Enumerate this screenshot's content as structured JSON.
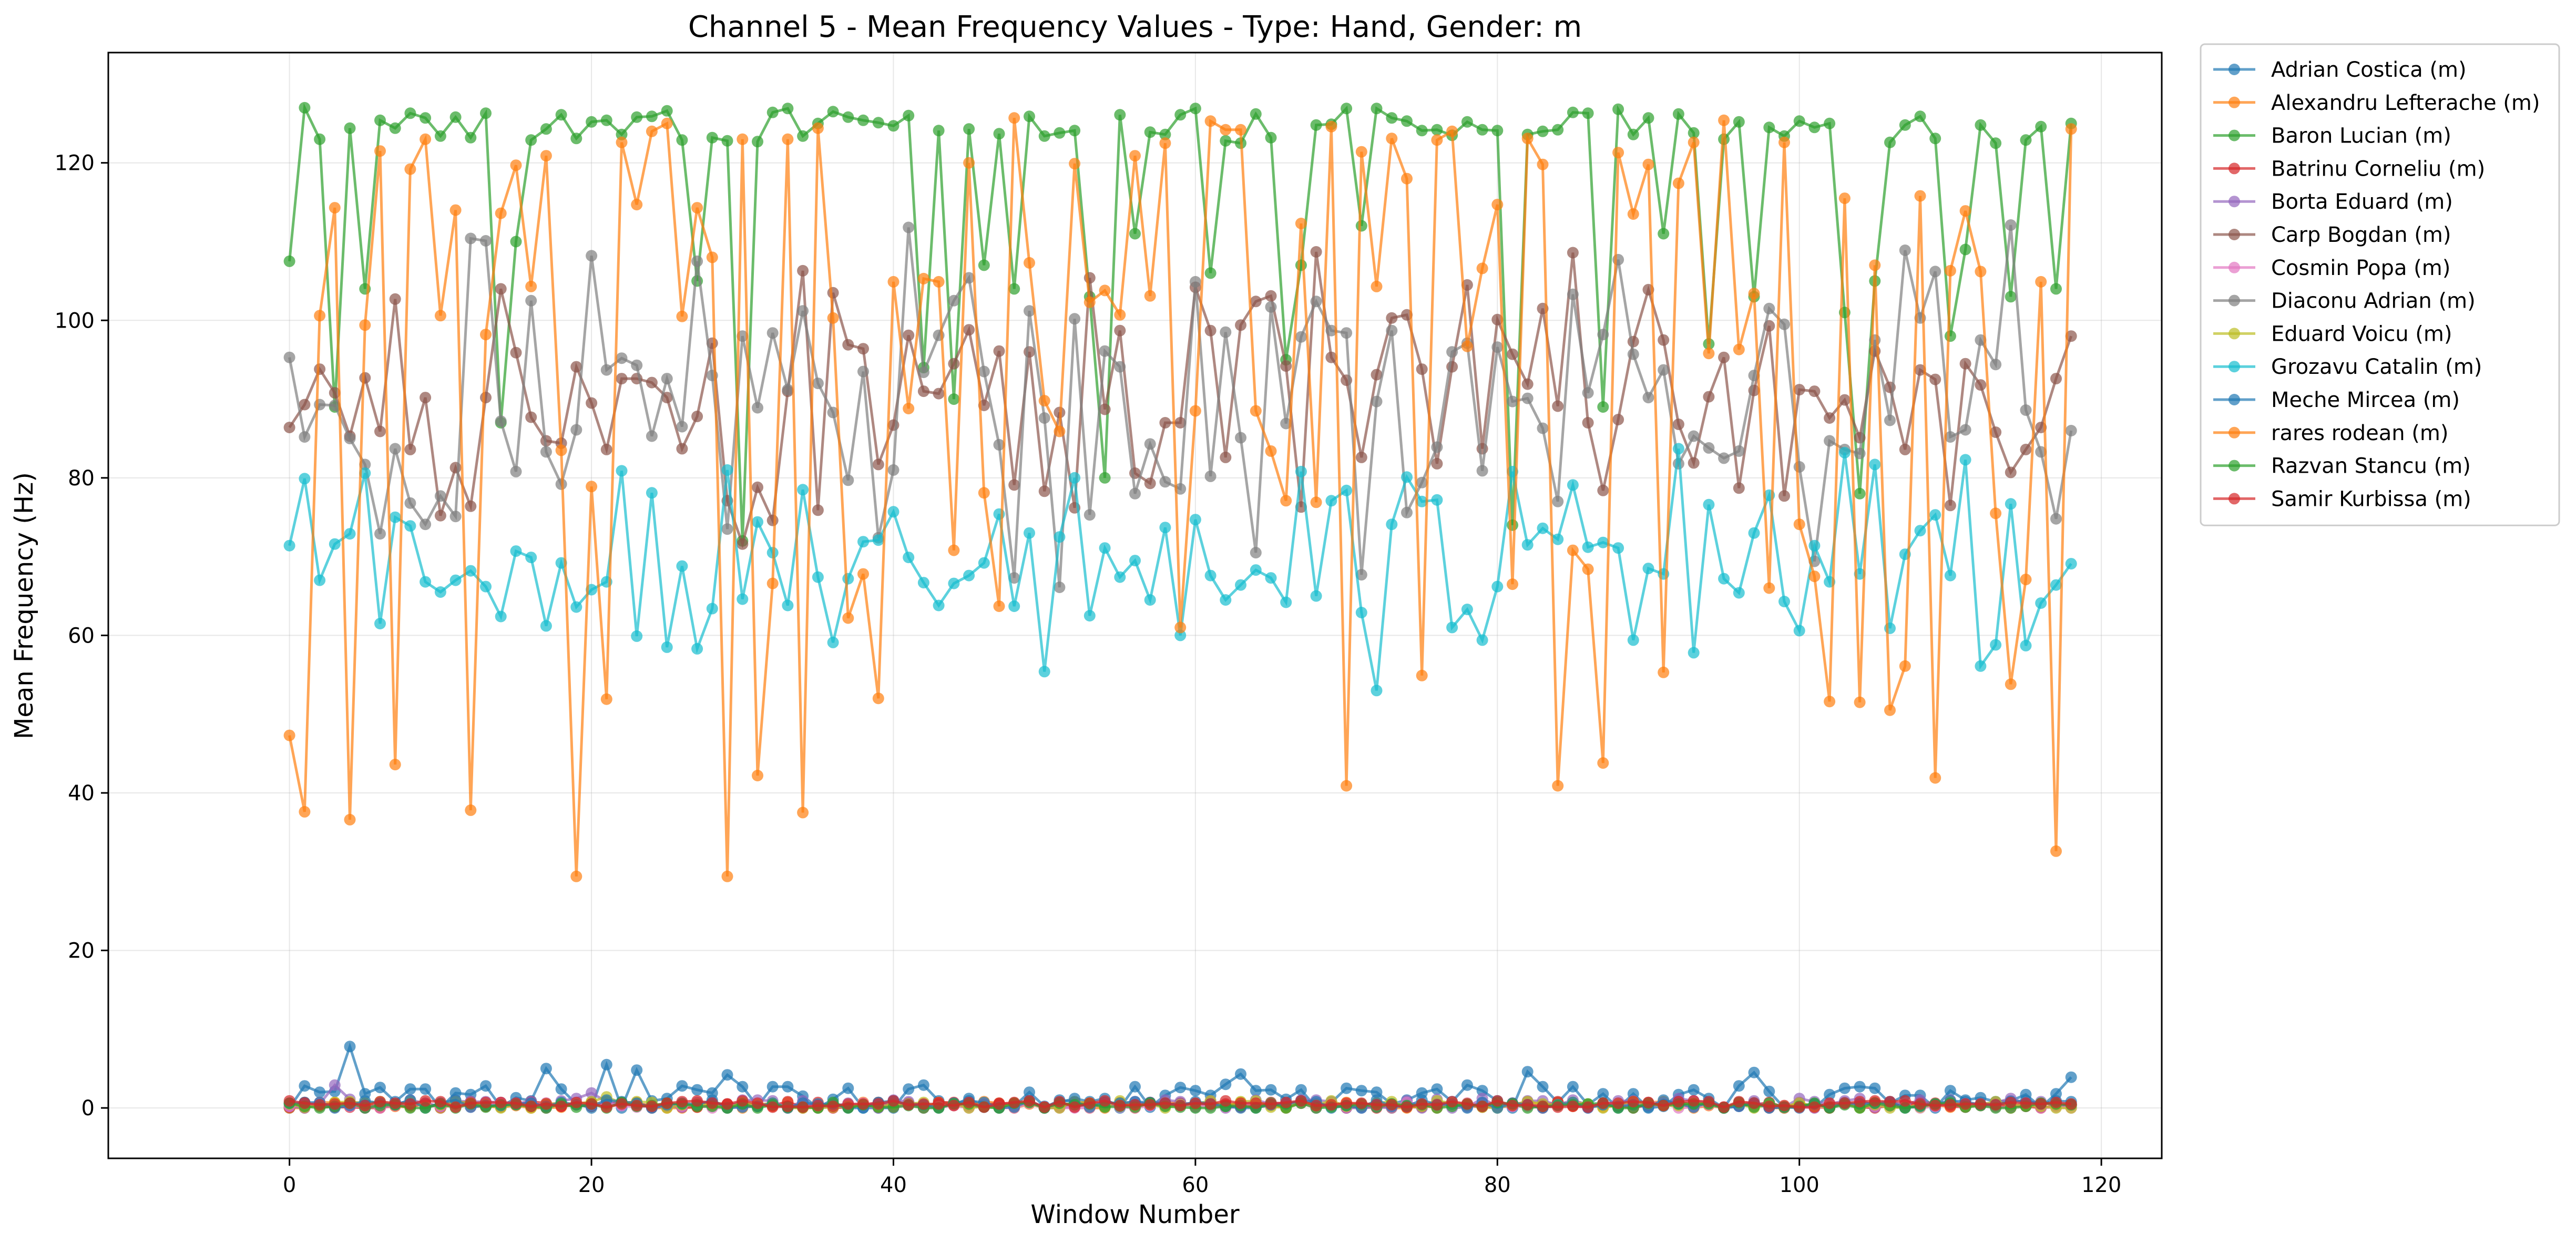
{
  "chart_data": {
    "type": "line",
    "title": "Channel 5 - Mean Frequency Values - Type: Hand, Gender: m",
    "xlabel": "Window Number",
    "ylabel": "Mean Frequency (Hz)",
    "xlim": [
      -12,
      124
    ],
    "ylim": [
      -6.4,
      134
    ],
    "xticks": [
      0,
      20,
      40,
      60,
      80,
      100,
      120
    ],
    "yticks": [
      0,
      20,
      40,
      60,
      80,
      100,
      120
    ],
    "grid": true,
    "legend_position": "outside-right-top",
    "series": [
      {
        "name": "Adrian Costica (m)",
        "color": "#1f77b4",
        "kind": "low",
        "base": 1.2,
        "amp": 3.6,
        "seed": 11,
        "peaks": [
          [
            4,
            7.8
          ],
          [
            17,
            5.0
          ],
          [
            21,
            5.5
          ],
          [
            23,
            4.8
          ],
          [
            29,
            4.2
          ],
          [
            63,
            4.3
          ],
          [
            82,
            4.6
          ],
          [
            97,
            4.5
          ],
          [
            118,
            3.9
          ]
        ]
      },
      {
        "name": "Alexandru Lefterache (m)",
        "color": "#ff7f0e",
        "kind": "low",
        "base": 0.3,
        "amp": 1.0,
        "seed": 12,
        "peaks": []
      },
      {
        "name": "Baron Lucian (m)",
        "color": "#2ca02c",
        "kind": "high",
        "base": 124,
        "amp": 6,
        "seed": 13,
        "dips": [
          [
            3,
            89
          ],
          [
            5,
            104
          ],
          [
            14,
            87
          ],
          [
            15,
            110
          ],
          [
            27,
            105
          ],
          [
            30,
            72
          ],
          [
            42,
            94
          ],
          [
            44,
            90
          ],
          [
            46,
            107
          ],
          [
            48,
            104
          ],
          [
            53,
            103
          ],
          [
            54,
            80
          ],
          [
            56,
            111
          ],
          [
            61,
            106
          ],
          [
            66,
            95
          ],
          [
            67,
            107
          ],
          [
            71,
            112
          ],
          [
            81,
            74
          ],
          [
            87,
            89
          ],
          [
            91,
            111
          ],
          [
            94,
            97
          ],
          [
            97,
            103
          ],
          [
            103,
            101
          ],
          [
            104,
            78
          ],
          [
            105,
            105
          ],
          [
            110,
            98
          ],
          [
            111,
            109
          ],
          [
            114,
            103
          ],
          [
            117,
            104
          ]
        ]
      },
      {
        "name": "Batrinu Corneliu (m)",
        "color": "#d62728",
        "kind": "low",
        "base": 0.4,
        "amp": 0.9,
        "seed": 14,
        "peaks": []
      },
      {
        "name": "Borta Eduard (m)",
        "color": "#9467bd",
        "kind": "low",
        "base": 0.5,
        "amp": 1.4,
        "seed": 15,
        "peaks": [
          [
            3,
            2.9
          ],
          [
            20,
            1.9
          ]
        ]
      },
      {
        "name": "Carp Bogdan (m)",
        "color": "#8c564b",
        "kind": "mid",
        "lo": 62,
        "hi": 118,
        "seed": 16
      },
      {
        "name": "Cosmin Popa (m)",
        "color": "#e377c2",
        "kind": "low",
        "base": 0.3,
        "amp": 0.8,
        "seed": 17,
        "peaks": []
      },
      {
        "name": "Diaconu Adrian (m)",
        "color": "#7f7f7f",
        "kind": "mid",
        "lo": 54,
        "hi": 124,
        "seed": 18
      },
      {
        "name": "Eduard Voicu (m)",
        "color": "#bcbd22",
        "kind": "low",
        "base": 0.4,
        "amp": 1.0,
        "seed": 19,
        "peaks": [
          [
            21,
            1.4
          ]
        ]
      },
      {
        "name": "Grozavu Catalin (m)",
        "color": "#17becf",
        "kind": "mid",
        "lo": 51,
        "hi": 88,
        "seed": 20
      },
      {
        "name": "Meche Mircea (m)",
        "color": "#1f77b4",
        "kind": "low",
        "base": 0.4,
        "amp": 1.2,
        "seed": 21,
        "peaks": []
      },
      {
        "name": "rares rodean (m)",
        "color": "#ff7f0e",
        "kind": "wide",
        "lo": 29,
        "hi": 126,
        "seed": 22
      },
      {
        "name": "Razvan Stancu (m)",
        "color": "#2ca02c",
        "kind": "low",
        "base": 0.3,
        "amp": 0.8,
        "seed": 23,
        "peaks": []
      },
      {
        "name": "Samir Kurbissa (m)",
        "color": "#d62728",
        "kind": "low",
        "base": 0.5,
        "amp": 0.9,
        "seed": 24,
        "peaks": []
      }
    ]
  }
}
